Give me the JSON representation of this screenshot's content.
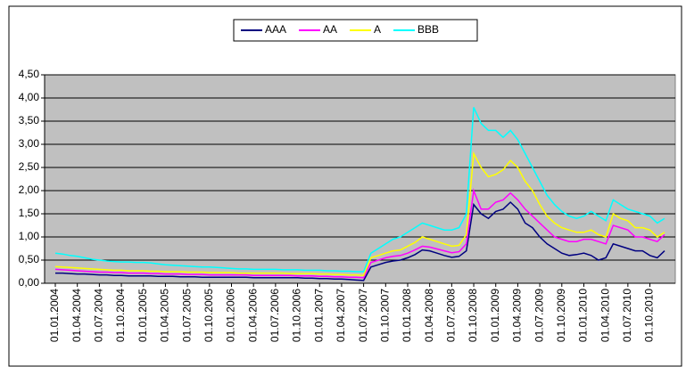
{
  "chart_data": {
    "type": "line",
    "categories": [
      "01.01.2004",
      null,
      null,
      "01.04.2004",
      null,
      null,
      "01.07.2004",
      null,
      null,
      "01.10.2004",
      null,
      null,
      "01.01.2005",
      null,
      null,
      "01.04.2005",
      null,
      null,
      "01.07.2005",
      null,
      null,
      "01.10.2005",
      null,
      null,
      "01.01.2006",
      null,
      null,
      "01.04.2006",
      null,
      null,
      "01.07.2006",
      null,
      null,
      "01.10.2006",
      null,
      null,
      "01.01.2007",
      null,
      null,
      "01.04.2007",
      null,
      null,
      "01.07.2007",
      null,
      null,
      "01.10.2007",
      null,
      null,
      "01.01.2008",
      null,
      null,
      "01.04.2008",
      null,
      null,
      "01.07.2008",
      null,
      null,
      "01.10.2008",
      null,
      null,
      "01.01.2009",
      null,
      null,
      "01.04.2009",
      null,
      null,
      "01.07.2009",
      null,
      null,
      "01.10.2009",
      null,
      null,
      "01.01.2010",
      null,
      null,
      "01.04.2010",
      null,
      null,
      "01.07.2010",
      null,
      null,
      "01.10.2010",
      null,
      null
    ],
    "series": [
      {
        "name": "AAA",
        "color": "#000080",
        "values": [
          0.22,
          0.22,
          0.21,
          0.2,
          0.2,
          0.19,
          0.18,
          0.18,
          0.17,
          0.17,
          0.16,
          0.16,
          0.16,
          0.16,
          0.15,
          0.15,
          0.15,
          0.14,
          0.14,
          0.14,
          0.13,
          0.13,
          0.13,
          0.13,
          0.13,
          0.13,
          0.13,
          0.12,
          0.12,
          0.12,
          0.12,
          0.12,
          0.12,
          0.12,
          0.11,
          0.11,
          0.1,
          0.1,
          0.09,
          0.09,
          0.08,
          0.07,
          0.06,
          0.35,
          0.4,
          0.45,
          0.48,
          0.5,
          0.55,
          0.62,
          0.72,
          0.7,
          0.65,
          0.6,
          0.56,
          0.58,
          0.7,
          1.7,
          1.5,
          1.4,
          1.55,
          1.6,
          1.75,
          1.6,
          1.3,
          1.2,
          1.0,
          0.85,
          0.75,
          0.65,
          0.6,
          0.62,
          0.65,
          0.6,
          0.5,
          0.55,
          0.85,
          0.8,
          0.75,
          0.7,
          0.7,
          0.6,
          0.55,
          0.7
        ]
      },
      {
        "name": "AA",
        "color": "#ff00ff",
        "values": [
          0.3,
          0.29,
          0.28,
          0.27,
          0.26,
          0.25,
          0.24,
          0.24,
          0.23,
          0.23,
          0.22,
          0.22,
          0.22,
          0.21,
          0.21,
          0.2,
          0.2,
          0.2,
          0.19,
          0.19,
          0.19,
          0.18,
          0.18,
          0.18,
          0.18,
          0.18,
          0.18,
          0.17,
          0.17,
          0.17,
          0.17,
          0.17,
          0.17,
          0.16,
          0.16,
          0.16,
          0.15,
          0.15,
          0.14,
          0.14,
          0.13,
          0.13,
          0.12,
          0.45,
          0.5,
          0.55,
          0.58,
          0.6,
          0.65,
          0.72,
          0.8,
          0.78,
          0.74,
          0.7,
          0.66,
          0.68,
          0.85,
          2.0,
          1.6,
          1.6,
          1.75,
          1.8,
          1.95,
          1.8,
          1.6,
          1.45,
          1.3,
          1.15,
          1.0,
          0.95,
          0.9,
          0.9,
          0.95,
          0.95,
          0.9,
          0.85,
          1.25,
          1.2,
          1.15,
          1.0,
          1.0,
          0.95,
          0.9,
          1.05
        ]
      },
      {
        "name": "A",
        "color": "#ffff00",
        "values": [
          0.36,
          0.35,
          0.34,
          0.33,
          0.32,
          0.31,
          0.3,
          0.29,
          0.28,
          0.28,
          0.27,
          0.27,
          0.27,
          0.26,
          0.26,
          0.25,
          0.25,
          0.25,
          0.24,
          0.24,
          0.24,
          0.23,
          0.23,
          0.23,
          0.23,
          0.22,
          0.22,
          0.22,
          0.22,
          0.22,
          0.22,
          0.22,
          0.21,
          0.21,
          0.21,
          0.21,
          0.2,
          0.2,
          0.19,
          0.19,
          0.18,
          0.18,
          0.17,
          0.55,
          0.6,
          0.65,
          0.7,
          0.72,
          0.8,
          0.88,
          1.0,
          0.95,
          0.9,
          0.85,
          0.8,
          0.82,
          1.05,
          2.8,
          2.5,
          2.3,
          2.35,
          2.45,
          2.65,
          2.5,
          2.2,
          2.0,
          1.7,
          1.45,
          1.3,
          1.2,
          1.15,
          1.1,
          1.1,
          1.15,
          1.05,
          1.0,
          1.5,
          1.4,
          1.35,
          1.2,
          1.2,
          1.15,
          1.0,
          1.1
        ]
      },
      {
        "name": "BBB",
        "color": "#00ffff",
        "values": [
          0.65,
          0.63,
          0.6,
          0.58,
          0.55,
          0.52,
          0.5,
          0.48,
          0.47,
          0.46,
          0.46,
          0.45,
          0.45,
          0.44,
          0.42,
          0.4,
          0.39,
          0.38,
          0.37,
          0.36,
          0.35,
          0.35,
          0.34,
          0.33,
          0.32,
          0.31,
          0.31,
          0.3,
          0.3,
          0.3,
          0.3,
          0.29,
          0.29,
          0.29,
          0.28,
          0.28,
          0.28,
          0.27,
          0.27,
          0.26,
          0.26,
          0.25,
          0.25,
          0.65,
          0.75,
          0.85,
          0.95,
          1.0,
          1.1,
          1.2,
          1.3,
          1.25,
          1.2,
          1.15,
          1.15,
          1.2,
          1.5,
          3.8,
          3.45,
          3.3,
          3.3,
          3.15,
          3.3,
          3.1,
          2.8,
          2.5,
          2.2,
          1.9,
          1.7,
          1.55,
          1.45,
          1.4,
          1.45,
          1.55,
          1.45,
          1.35,
          1.8,
          1.7,
          1.6,
          1.55,
          1.5,
          1.45,
          1.3,
          1.4
        ]
      }
    ],
    "ylim": [
      0,
      4.5
    ],
    "yticks": [
      {
        "value": 0,
        "label": "0,00"
      },
      {
        "value": 0.5,
        "label": "0,50"
      },
      {
        "value": 1,
        "label": "1,00"
      },
      {
        "value": 1.5,
        "label": "1,50"
      },
      {
        "value": 2,
        "label": "2,00"
      },
      {
        "value": 2.5,
        "label": "2,50"
      },
      {
        "value": 3,
        "label": "3,00"
      },
      {
        "value": 3.5,
        "label": "3,50"
      },
      {
        "value": 4,
        "label": "4,00"
      },
      {
        "value": 4.5,
        "label": "4,50"
      }
    ],
    "grid": true,
    "legend": "top"
  }
}
